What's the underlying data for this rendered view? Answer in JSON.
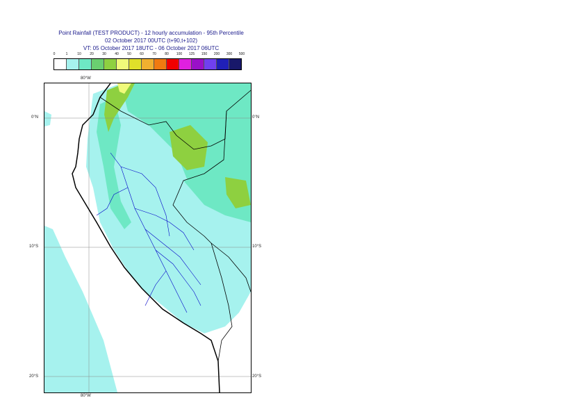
{
  "title": {
    "line1": "Point Rainfall (TEST PRODUCT) - 12 hourly accumulation - 95th Percentile",
    "line2": "02 October 2017 00UTC (t+90,t+102)",
    "line3": "VT: 05 October 2017 18UTC - 06 October 2017 06UTC"
  },
  "legend": {
    "ticks": [
      "0",
      "1",
      "10",
      "20",
      "30",
      "40",
      "50",
      "60",
      "70",
      "80",
      "100",
      "125",
      "150",
      "200",
      "300",
      "500"
    ],
    "colors": [
      "#ffffff",
      "#a6f2ee",
      "#6ee8c4",
      "#6ad070",
      "#8ed040",
      "#f0fa7a",
      "#e0e02a",
      "#f0b030",
      "#f07a10",
      "#f00000",
      "#e020e0",
      "#9a10c8",
      "#7040f0",
      "#2020b8",
      "#18186a"
    ]
  },
  "map": {
    "lon_labels": {
      "top": "80°W",
      "bottom": "80°W"
    },
    "lat_labels": {
      "lat0": {
        "left": "0°N",
        "right": "0°N"
      },
      "lat10": {
        "left": "10°S",
        "right": "10°S"
      },
      "lat20": {
        "left": "20°S",
        "right": "20°S"
      }
    }
  }
}
